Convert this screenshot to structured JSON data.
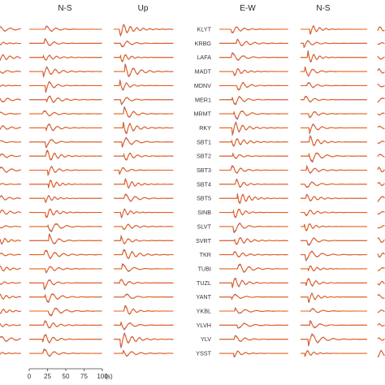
{
  "chart_data": {
    "type": "line",
    "panels": [
      {
        "name": "left-group",
        "columns": [
          "",
          "N-S",
          "Up"
        ],
        "stations": []
      },
      {
        "name": "right-group",
        "columns": [
          "E-W",
          "N-S",
          ""
        ],
        "stations": [
          "KLYT",
          "KRBG",
          "LAFA",
          "MADT",
          "MDNV",
          "MER1",
          "MRMT",
          "RKY",
          "SBT1",
          "SBT2",
          "SBT3",
          "SBT4",
          "SBT5",
          "SINB",
          "SLVT",
          "SVRT",
          "TKR",
          "TUBI",
          "TUZL",
          "YANT",
          "YKBL",
          "YLVH",
          "YLV",
          "YSST"
        ]
      }
    ],
    "xaxis": {
      "ticks": [
        "0",
        "25",
        "50",
        "75",
        "100"
      ],
      "unit": "(s)",
      "range": [
        0,
        100
      ]
    },
    "series": [
      {
        "name": "",
        "color": "#e8601a"
      },
      {
        "name": "",
        "color": "#5a5ad8"
      }
    ],
    "grid": false,
    "legend": "none"
  }
}
